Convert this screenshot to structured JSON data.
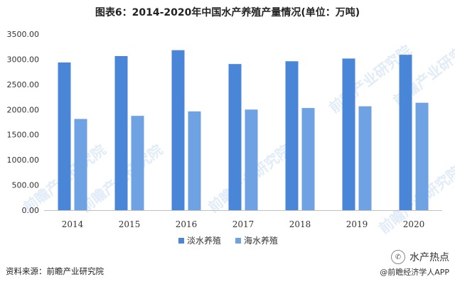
{
  "title": "图表6：2014-2020年中国水产养殖产量情况(单位：万吨)",
  "source": "资料来源：前瞻产业研究院",
  "brand": {
    "name": "水产热点",
    "sub": "@前瞻经济学人APP"
  },
  "watermark_text": "前瞻产业研究院",
  "colors": {
    "freshwater": "#4a86d8",
    "marine": "#6fa2e2",
    "axis": "#bfbfbf",
    "tick_text": "#333333"
  },
  "chart_data": {
    "type": "bar",
    "title": "图表6：2014-2020年中国水产养殖产量情况(单位：万吨)",
    "categories": [
      "2014",
      "2015",
      "2016",
      "2017",
      "2018",
      "2019",
      "2020"
    ],
    "series": [
      {
        "name": "淡水养殖",
        "values": [
          2936,
          3063,
          3180,
          2905,
          2960,
          3014,
          3089
        ]
      },
      {
        "name": "海水养殖",
        "values": [
          1813,
          1875,
          1963,
          2000,
          2031,
          2065,
          2135
        ]
      }
    ],
    "yticks": [
      "0.00",
      "500.00",
      "1000.00",
      "1500.00",
      "2000.00",
      "2500.00",
      "3000.00",
      "3500.00"
    ],
    "ylim": [
      0,
      3500
    ],
    "xlabel": "",
    "ylabel": "",
    "grid": false,
    "legend_position": "bottom"
  }
}
